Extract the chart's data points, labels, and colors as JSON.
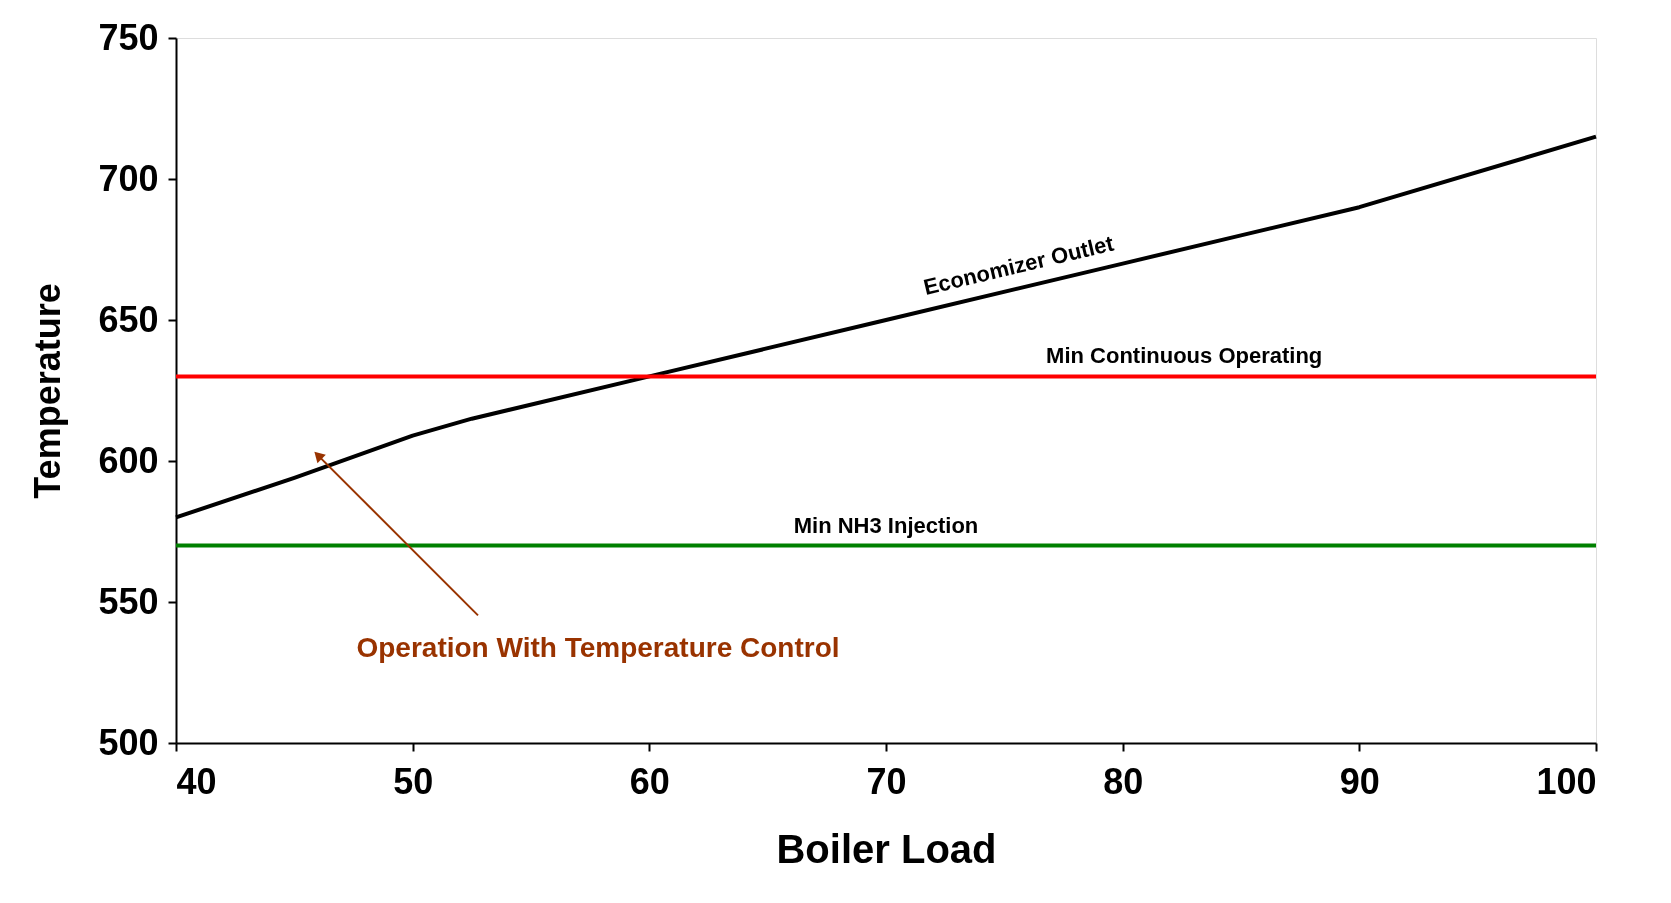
{
  "chart_data": {
    "type": "line",
    "xlabel": "Boiler Load",
    "ylabel": "Temperature",
    "xlim": [
      40,
      100
    ],
    "xticks": [
      40,
      50,
      60,
      70,
      80,
      90,
      100
    ],
    "ylim": [
      500,
      750
    ],
    "yticks": [
      500,
      550,
      600,
      650,
      700,
      750
    ],
    "grid": false,
    "marker": "none",
    "line_style": "solid",
    "series": [
      {
        "name": "Economizer Outlet",
        "color": "#000000",
        "x": [
          40,
          45,
          50,
          52.5,
          60,
          70,
          80,
          85,
          90,
          100
        ],
        "values": [
          580,
          594,
          609,
          615,
          630,
          650,
          670,
          680,
          690,
          715
        ]
      }
    ],
    "ref_lines": [
      {
        "axis": "y",
        "value": 630,
        "label": "Min Continuous Operating",
        "color": "#ff0000"
      },
      {
        "axis": "y",
        "value": 570,
        "label": "Min NH3 Injection",
        "color": "#008000"
      }
    ],
    "annotations": [
      {
        "text": "Operation With Temperature Control",
        "x": 46,
        "y": 602
      }
    ]
  }
}
